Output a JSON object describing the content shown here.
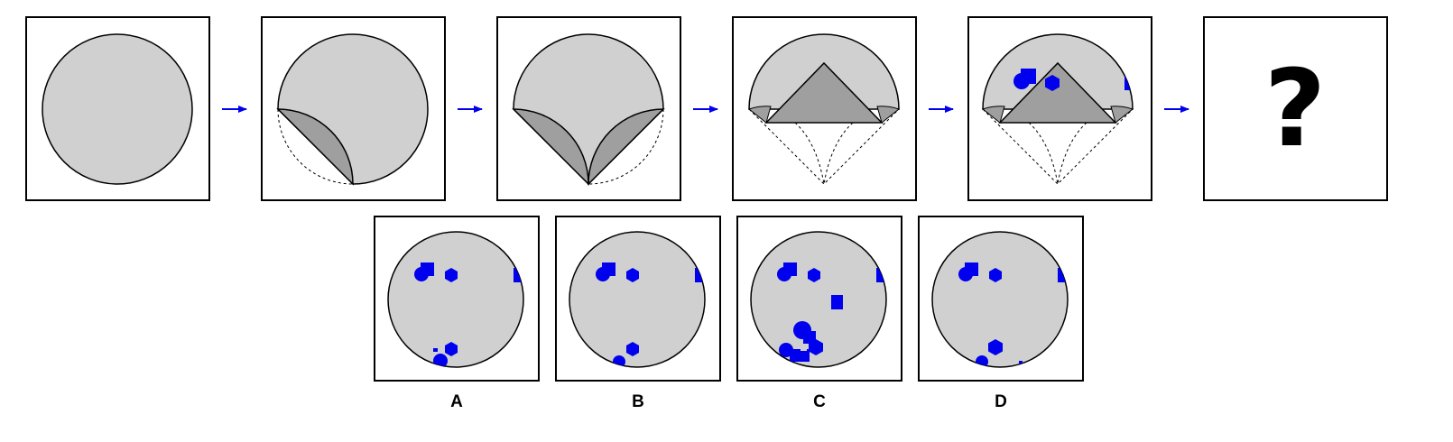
{
  "question_mark": "?",
  "colors": {
    "paper": "#d0d0d0",
    "fold": "#9f9f9f",
    "punch": "#0000ee",
    "arrow": "#0000ee",
    "outline": "#000000"
  },
  "sequence_steps": [
    {
      "step": 1,
      "description_icon": "unfolded-circle"
    },
    {
      "step": 2,
      "description_icon": "first-fold"
    },
    {
      "step": 3,
      "description_icon": "second-fold"
    },
    {
      "step": 4,
      "description_icon": "third-fold"
    },
    {
      "step": 5,
      "description_icon": "punched-folded-paper"
    },
    {
      "step": 6,
      "description_icon": "question-mark"
    }
  ],
  "options": [
    {
      "label": "A"
    },
    {
      "label": "B"
    },
    {
      "label": "C"
    },
    {
      "label": "D"
    }
  ]
}
